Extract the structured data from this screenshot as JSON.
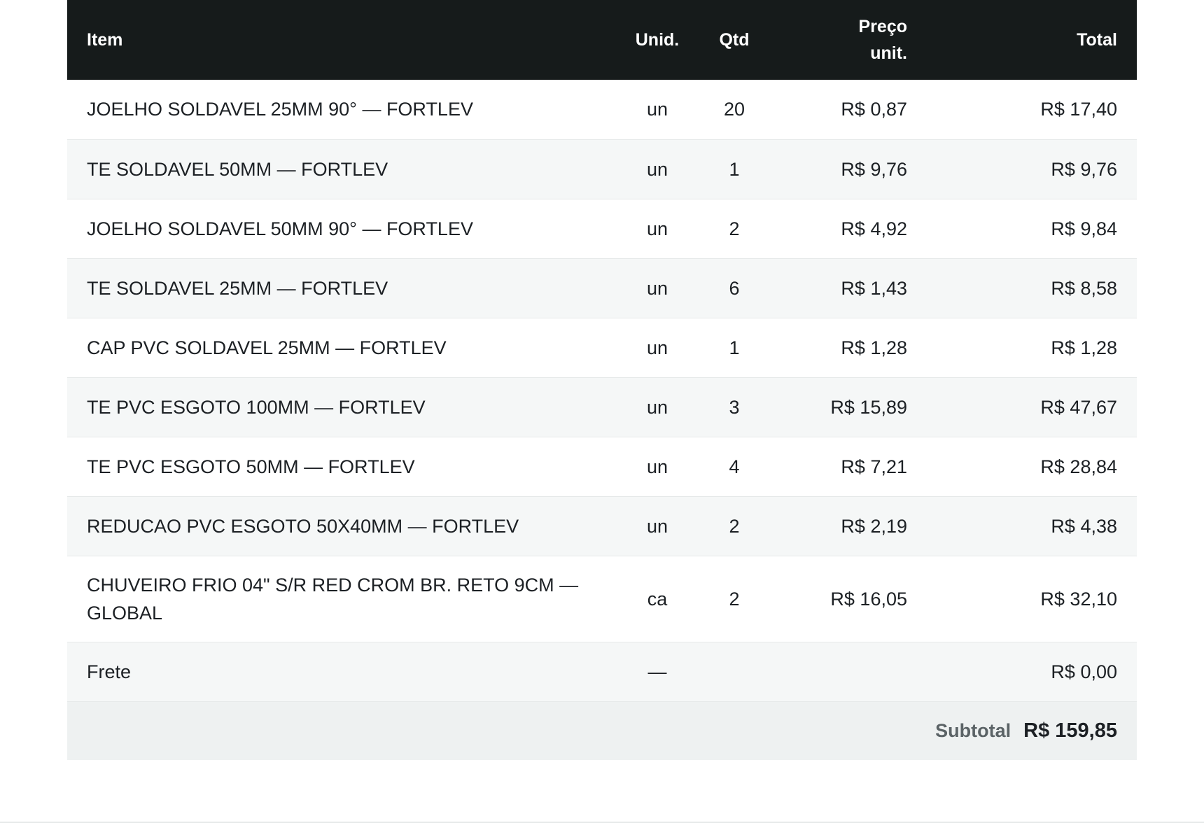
{
  "columns": {
    "item": "Item",
    "unid": "Unid.",
    "qtd": "Qtd",
    "preco_line1": "Preço",
    "preco_line2": "unit.",
    "total": "Total"
  },
  "rows": [
    {
      "item": "JOELHO SOLDAVEL 25MM 90° — FORTLEV",
      "unid": "un",
      "qtd": "20",
      "preco": "R$ 0,87",
      "total": "R$ 17,40"
    },
    {
      "item": "TE SOLDAVEL 50MM — FORTLEV",
      "unid": "un",
      "qtd": "1",
      "preco": "R$ 9,76",
      "total": "R$ 9,76"
    },
    {
      "item": "JOELHO SOLDAVEL 50MM 90° — FORTLEV",
      "unid": "un",
      "qtd": "2",
      "preco": "R$ 4,92",
      "total": "R$ 9,84"
    },
    {
      "item": "TE SOLDAVEL 25MM — FORTLEV",
      "unid": "un",
      "qtd": "6",
      "preco": "R$ 1,43",
      "total": "R$ 8,58"
    },
    {
      "item": "CAP PVC SOLDAVEL 25MM — FORTLEV",
      "unid": "un",
      "qtd": "1",
      "preco": "R$ 1,28",
      "total": "R$ 1,28"
    },
    {
      "item": "TE PVC ESGOTO 100MM — FORTLEV",
      "unid": "un",
      "qtd": "3",
      "preco": "R$ 15,89",
      "total": "R$ 47,67"
    },
    {
      "item": "TE PVC ESGOTO 50MM — FORTLEV",
      "unid": "un",
      "qtd": "4",
      "preco": "R$ 7,21",
      "total": "R$ 28,84"
    },
    {
      "item": "REDUCAO PVC ESGOTO 50X40MM — FORTLEV",
      "unid": "un",
      "qtd": "2",
      "preco": "R$ 2,19",
      "total": "R$ 4,38"
    },
    {
      "item": "CHUVEIRO FRIO 04\" S/R RED CROM BR. RETO 9CM — GLOBAL",
      "unid": "ca",
      "qtd": "2",
      "preco": "R$ 16,05",
      "total": "R$ 32,10"
    },
    {
      "item": "Frete",
      "unid": "—",
      "qtd": "",
      "preco": "",
      "total": "R$ 0,00"
    }
  ],
  "subtotal": {
    "label": "Subtotal",
    "value": "R$ 159,85"
  }
}
